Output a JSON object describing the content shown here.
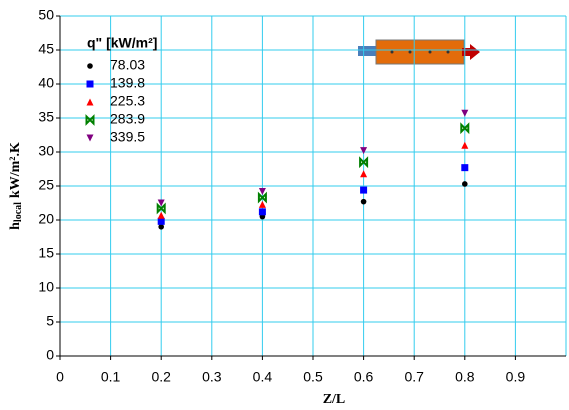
{
  "chart_data": {
    "type": "scatter",
    "x_label": "Z/L",
    "y_label": [
      "h",
      "local",
      "kW/m².K"
    ],
    "legend_title": "q\" [kW/m²]",
    "legend": "upper-left",
    "grid": true,
    "xlim": [
      0,
      1
    ],
    "xticks": [
      0,
      0.1,
      0.2,
      0.3,
      0.4,
      0.5,
      0.6,
      0.7,
      0.8,
      0.9
    ],
    "ylim": [
      0,
      50
    ],
    "yticks": [
      0,
      5,
      10,
      15,
      20,
      25,
      30,
      35,
      40,
      45,
      50
    ],
    "x": [
      0.2,
      0.4,
      0.6,
      0.8
    ],
    "series": [
      {
        "name": "78.03",
        "color": "#000000",
        "marker": "circle",
        "values": [
          19,
          20.5,
          22.7,
          25.3
        ]
      },
      {
        "name": "139.8",
        "color": "#0000ff",
        "marker": "square",
        "values": [
          19.8,
          21.2,
          24.4,
          27.7
        ]
      },
      {
        "name": "225.3",
        "color": "#ff0000",
        "marker": "triangle-up",
        "values": [
          20.7,
          22.3,
          26.8,
          31
        ]
      },
      {
        "name": "283.9",
        "color": "#008000",
        "marker": "bowtie",
        "values": [
          21.7,
          23.3,
          28.5,
          33.5
        ]
      },
      {
        "name": "339.5",
        "color": "#800080",
        "marker": "triangle-down",
        "values": [
          22.5,
          24.2,
          30.2,
          35.7
        ]
      }
    ]
  }
}
